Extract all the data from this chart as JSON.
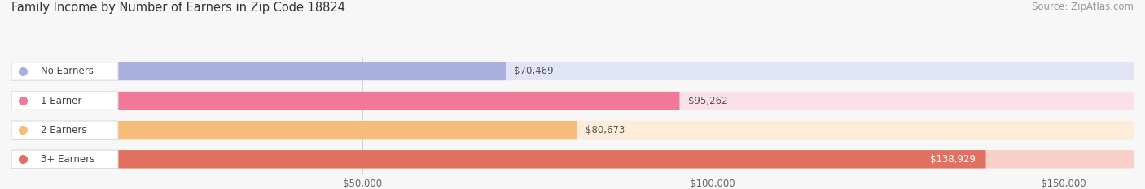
{
  "title": "Family Income by Number of Earners in Zip Code 18824",
  "source": "Source: ZipAtlas.com",
  "categories": [
    "No Earners",
    "1 Earner",
    "2 Earners",
    "3+ Earners"
  ],
  "values": [
    70469,
    95262,
    80673,
    138929
  ],
  "bar_colors": [
    "#aab0de",
    "#f07898",
    "#f5bc7a",
    "#e07060"
  ],
  "bar_bg_colors": [
    "#e0e4f4",
    "#fae0e8",
    "#fdecd8",
    "#f8d0c8"
  ],
  "value_labels": [
    "$70,469",
    "$95,262",
    "$80,673",
    "$138,929"
  ],
  "value_inside": [
    false,
    false,
    false,
    true
  ],
  "x_ticks": [
    50000,
    100000,
    150000
  ],
  "x_tick_labels": [
    "$50,000",
    "$100,000",
    "$150,000"
  ],
  "xmin": 0,
  "xmax": 160000,
  "background_color": "#f7f7f7",
  "plot_bg_color": "#f7f7f7",
  "title_fontsize": 10.5,
  "source_fontsize": 8.5,
  "bar_fontsize": 8.5,
  "tick_fontsize": 8.5
}
